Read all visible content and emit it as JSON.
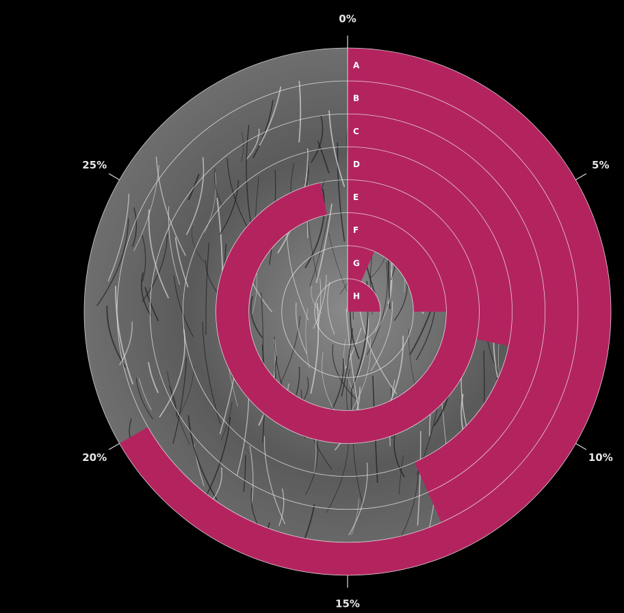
{
  "chart_data": {
    "type": "radial-bar",
    "categories": [
      "A",
      "B",
      "C",
      "D",
      "E",
      "F",
      "G",
      "H"
    ],
    "values": [
      20,
      13,
      13,
      8.5,
      29,
      7.5,
      2,
      7.5
    ],
    "color": "#b3245f",
    "ylim": [
      0,
      30
    ],
    "yticks": [
      {
        "value": 0,
        "label": "0%"
      },
      {
        "value": 5,
        "label": "5%"
      },
      {
        "value": 10,
        "label": "10%"
      },
      {
        "value": 15,
        "label": "15%"
      },
      {
        "value": 20,
        "label": "20%"
      },
      {
        "value": 25,
        "label": "25%"
      }
    ],
    "grid": true
  }
}
